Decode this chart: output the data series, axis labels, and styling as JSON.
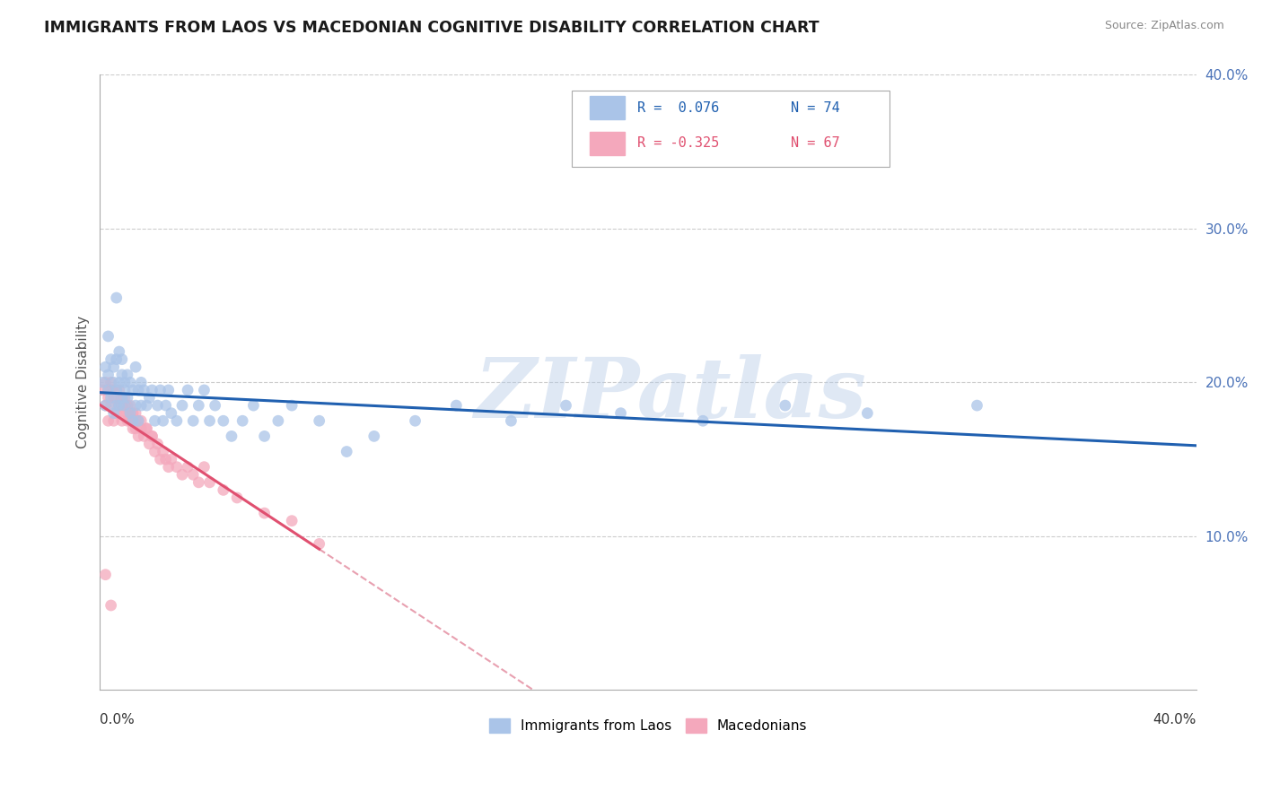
{
  "title": "IMMIGRANTS FROM LAOS VS MACEDONIAN COGNITIVE DISABILITY CORRELATION CHART",
  "source": "Source: ZipAtlas.com",
  "ylabel": "Cognitive Disability",
  "xlim": [
    0.0,
    0.4
  ],
  "ylim": [
    0.0,
    0.4
  ],
  "blue_color": "#aac4e8",
  "pink_color": "#f4a8bc",
  "blue_line_color": "#2060b0",
  "pink_line_color": "#e05070",
  "pink_dash_color": "#e8a0b0",
  "watermark": "ZIPatlas",
  "background_color": "#ffffff",
  "grid_color": "#cccccc",
  "blue_r": 0.076,
  "blue_n": 74,
  "pink_r": -0.325,
  "pink_n": 67,
  "legend_r1": "R =  0.076",
  "legend_n1": "N = 74",
  "legend_r2": "R = -0.325",
  "legend_n2": "N = 67",
  "blue_scatter_x": [
    0.001,
    0.002,
    0.002,
    0.003,
    0.003,
    0.004,
    0.004,
    0.005,
    0.005,
    0.005,
    0.006,
    0.006,
    0.006,
    0.007,
    0.007,
    0.007,
    0.008,
    0.008,
    0.008,
    0.009,
    0.009,
    0.01,
    0.01,
    0.011,
    0.011,
    0.012,
    0.012,
    0.013,
    0.013,
    0.014,
    0.014,
    0.015,
    0.015,
    0.016,
    0.017,
    0.018,
    0.019,
    0.02,
    0.021,
    0.022,
    0.023,
    0.024,
    0.025,
    0.026,
    0.028,
    0.03,
    0.032,
    0.034,
    0.036,
    0.038,
    0.04,
    0.042,
    0.045,
    0.048,
    0.052,
    0.056,
    0.06,
    0.065,
    0.07,
    0.08,
    0.09,
    0.1,
    0.115,
    0.13,
    0.15,
    0.17,
    0.19,
    0.22,
    0.25,
    0.28,
    0.32,
    0.003,
    0.006,
    0.009
  ],
  "blue_scatter_y": [
    0.2,
    0.185,
    0.21,
    0.195,
    0.205,
    0.19,
    0.215,
    0.18,
    0.2,
    0.21,
    0.185,
    0.195,
    0.215,
    0.185,
    0.2,
    0.22,
    0.19,
    0.205,
    0.215,
    0.185,
    0.2,
    0.19,
    0.205,
    0.18,
    0.2,
    0.175,
    0.195,
    0.185,
    0.21,
    0.175,
    0.195,
    0.185,
    0.2,
    0.195,
    0.185,
    0.19,
    0.195,
    0.175,
    0.185,
    0.195,
    0.175,
    0.185,
    0.195,
    0.18,
    0.175,
    0.185,
    0.195,
    0.175,
    0.185,
    0.195,
    0.175,
    0.185,
    0.175,
    0.165,
    0.175,
    0.185,
    0.165,
    0.175,
    0.185,
    0.175,
    0.155,
    0.165,
    0.175,
    0.185,
    0.175,
    0.185,
    0.18,
    0.175,
    0.185,
    0.18,
    0.185,
    0.23,
    0.255,
    0.195
  ],
  "pink_scatter_x": [
    0.001,
    0.002,
    0.002,
    0.003,
    0.003,
    0.004,
    0.004,
    0.005,
    0.005,
    0.006,
    0.006,
    0.007,
    0.007,
    0.008,
    0.008,
    0.009,
    0.009,
    0.01,
    0.01,
    0.011,
    0.011,
    0.012,
    0.012,
    0.013,
    0.013,
    0.014,
    0.014,
    0.015,
    0.016,
    0.017,
    0.018,
    0.019,
    0.02,
    0.021,
    0.022,
    0.023,
    0.024,
    0.025,
    0.026,
    0.028,
    0.03,
    0.032,
    0.034,
    0.036,
    0.038,
    0.04,
    0.045,
    0.05,
    0.06,
    0.07,
    0.08,
    0.003,
    0.005,
    0.007,
    0.009,
    0.011,
    0.013,
    0.015,
    0.017,
    0.019,
    0.004,
    0.006,
    0.008,
    0.01,
    0.012,
    0.002,
    0.004
  ],
  "pink_scatter_y": [
    0.195,
    0.185,
    0.2,
    0.175,
    0.195,
    0.185,
    0.2,
    0.175,
    0.195,
    0.18,
    0.195,
    0.185,
    0.195,
    0.175,
    0.19,
    0.18,
    0.19,
    0.175,
    0.185,
    0.175,
    0.185,
    0.17,
    0.18,
    0.17,
    0.18,
    0.165,
    0.175,
    0.17,
    0.165,
    0.17,
    0.16,
    0.165,
    0.155,
    0.16,
    0.15,
    0.155,
    0.15,
    0.145,
    0.15,
    0.145,
    0.14,
    0.145,
    0.14,
    0.135,
    0.145,
    0.135,
    0.13,
    0.125,
    0.115,
    0.11,
    0.095,
    0.19,
    0.19,
    0.185,
    0.185,
    0.18,
    0.175,
    0.175,
    0.17,
    0.165,
    0.195,
    0.19,
    0.185,
    0.18,
    0.175,
    0.075,
    0.055
  ]
}
